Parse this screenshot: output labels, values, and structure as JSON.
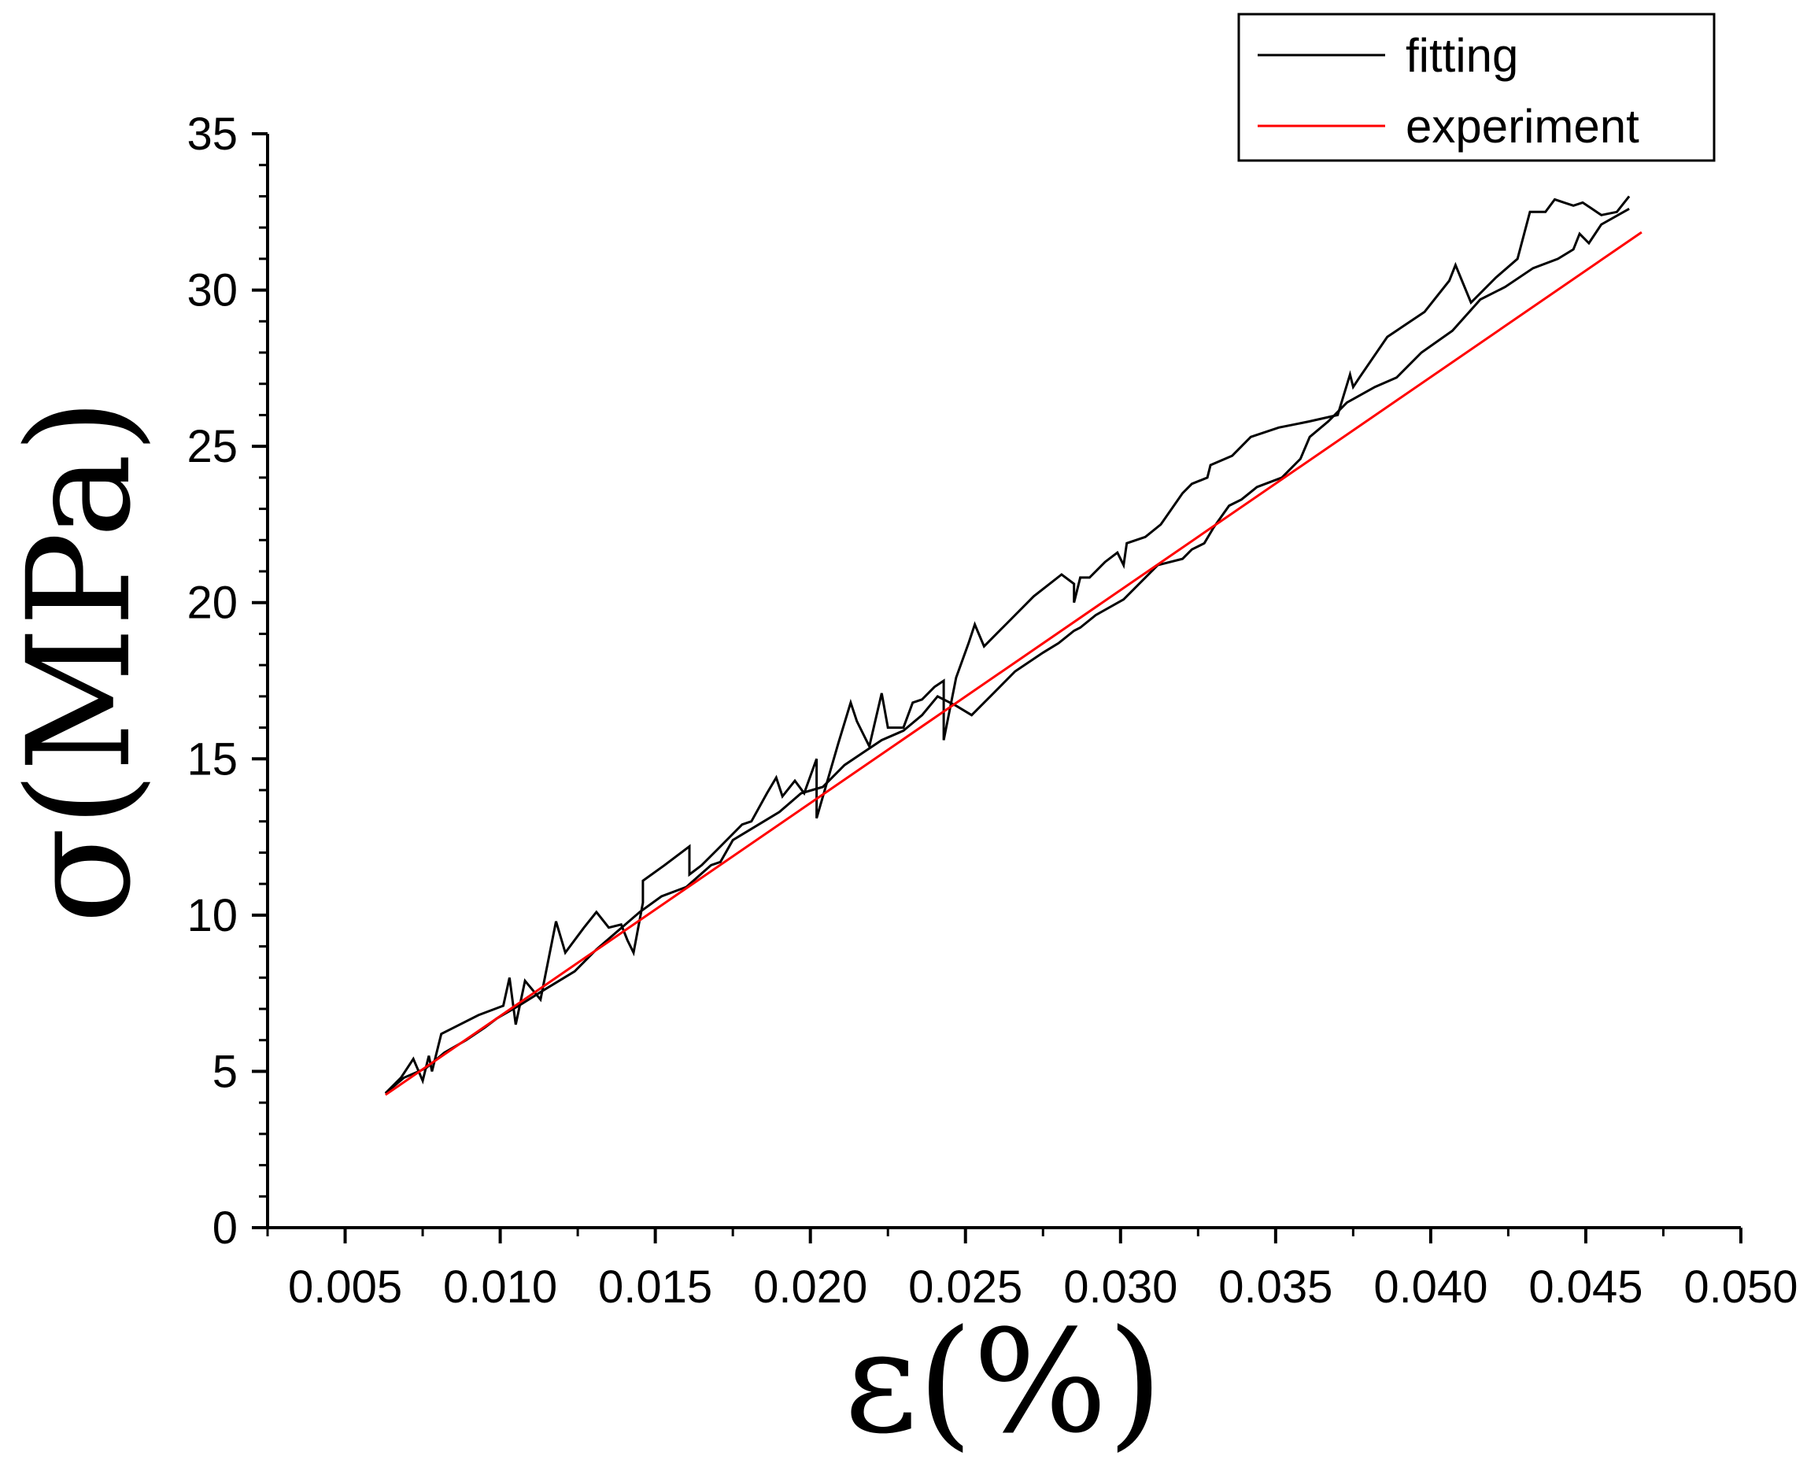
{
  "chart_data": {
    "type": "line",
    "xlabel": "ε(%)",
    "ylabel": "σ(MPa)",
    "xlim": [
      0.0025,
      0.05
    ],
    "ylim": [
      0,
      35
    ],
    "x_ticks": [
      "0.005",
      "0.010",
      "0.015",
      "0.020",
      "0.025",
      "0.030",
      "0.035",
      "0.040",
      "0.045",
      "0.050"
    ],
    "y_ticks": [
      "0",
      "5",
      "10",
      "15",
      "20",
      "25",
      "30",
      "35"
    ],
    "grid": false,
    "legend_position": "top-right",
    "colors": {
      "fitting": "#000000",
      "experiment": "#ff0000"
    },
    "series": [
      {
        "name": "fitting",
        "color": "#000000",
        "x": [
          0.0063,
          0.0068,
          0.0072,
          0.0075,
          0.0077,
          0.0078,
          0.0081,
          0.0085,
          0.0093,
          0.0101,
          0.0103,
          0.0105,
          0.0108,
          0.0113,
          0.0118,
          0.0121,
          0.0127,
          0.0131,
          0.0135,
          0.0139,
          0.0141,
          0.0143,
          0.0146,
          0.0146,
          0.0153,
          0.0161,
          0.0161,
          0.0165,
          0.017,
          0.0178,
          0.0181,
          0.0186,
          0.0189,
          0.0191,
          0.0195,
          0.0198,
          0.0202,
          0.0202,
          0.0209,
          0.0213,
          0.0215,
          0.0219,
          0.0223,
          0.0225,
          0.023,
          0.0233,
          0.0236,
          0.024,
          0.0243,
          0.0243,
          0.0247,
          0.0251,
          0.0253,
          0.0256,
          0.0263,
          0.0272,
          0.0281,
          0.0285,
          0.0285,
          0.0287,
          0.029,
          0.0295,
          0.0299,
          0.0301,
          0.0302,
          0.0308,
          0.0313,
          0.032,
          0.0323,
          0.0328,
          0.0329,
          0.0336,
          0.0342,
          0.0351,
          0.0361,
          0.037,
          0.0374,
          0.0375,
          0.0377,
          0.0386,
          0.0398,
          0.0406,
          0.0408,
          0.0413,
          0.0421,
          0.0428,
          0.0432,
          0.0437,
          0.044,
          0.0443,
          0.0446,
          0.0449,
          0.0452,
          0.0455,
          0.046,
          0.0464
        ],
        "y": [
          4.3,
          4.8,
          5.4,
          4.7,
          5.5,
          5.0,
          6.2,
          6.4,
          6.8,
          7.1,
          8.0,
          6.5,
          7.9,
          7.3,
          9.8,
          8.8,
          9.6,
          10.1,
          9.6,
          9.7,
          9.2,
          8.8,
          10.4,
          11.1,
          11.6,
          12.2,
          11.3,
          11.6,
          12.1,
          12.9,
          13.0,
          13.9,
          14.4,
          13.8,
          14.3,
          13.9,
          15.0,
          13.1,
          15.5,
          16.8,
          16.2,
          15.4,
          17.1,
          16.0,
          16.0,
          16.8,
          16.9,
          17.3,
          17.5,
          15.6,
          17.6,
          18.7,
          19.3,
          18.6,
          19.3,
          20.2,
          20.9,
          20.6,
          20.0,
          20.8,
          20.8,
          21.3,
          21.6,
          21.2,
          21.9,
          22.1,
          22.5,
          23.5,
          23.8,
          24.0,
          24.4,
          24.7,
          25.3,
          25.6,
          25.8,
          26.0,
          27.3,
          26.9,
          27.2,
          28.5,
          29.3,
          30.3,
          30.8,
          29.6,
          30.4,
          31.0,
          32.5,
          32.5,
          32.9,
          32.8,
          32.7,
          32.8,
          32.6,
          32.4,
          32.5,
          33.0
        ]
      },
      {
        "name": "fitting",
        "color": "#000000",
        "x": [
          0.0464,
          0.0455,
          0.0451,
          0.0448,
          0.0446,
          0.0441,
          0.0433,
          0.0424,
          0.0416,
          0.0407,
          0.0397,
          0.0389,
          0.0382,
          0.0373,
          0.0367,
          0.0361,
          0.0358,
          0.0352,
          0.0344,
          0.0339,
          0.0335,
          0.033,
          0.0327,
          0.0323,
          0.032,
          0.0312,
          0.0301,
          0.0292,
          0.0287,
          0.0285,
          0.028,
          0.0275,
          0.0266,
          0.0258,
          0.0252,
          0.0247,
          0.0241,
          0.0236,
          0.023,
          0.0223,
          0.0217,
          0.0211,
          0.0204,
          0.0197,
          0.019,
          0.0185,
          0.0175,
          0.0171,
          0.0168,
          0.016,
          0.0152,
          0.0145,
          0.0138,
          0.0131,
          0.0124,
          0.0114,
          0.0106,
          0.0099,
          0.0095,
          0.0089,
          0.0082,
          0.0076,
          0.0069,
          0.0063
        ],
        "y": [
          32.6,
          32.1,
          31.5,
          31.8,
          31.3,
          31.0,
          30.7,
          30.1,
          29.7,
          28.7,
          28.0,
          27.2,
          26.9,
          26.4,
          25.8,
          25.3,
          24.6,
          24.0,
          23.7,
          23.3,
          23.1,
          22.4,
          21.9,
          21.7,
          21.4,
          21.2,
          20.1,
          19.6,
          19.2,
          19.1,
          18.7,
          18.4,
          17.8,
          17.0,
          16.4,
          16.7,
          17.0,
          16.4,
          15.9,
          15.6,
          15.2,
          14.8,
          14.1,
          13.9,
          13.3,
          13.0,
          12.4,
          11.7,
          11.6,
          10.9,
          10.6,
          10.1,
          9.5,
          8.9,
          8.2,
          7.6,
          7.1,
          6.7,
          6.4,
          6.0,
          5.6,
          5.1,
          4.8,
          4.3
        ]
      },
      {
        "name": "experiment",
        "color": "#ff0000",
        "x": [
          0.0063,
          0.0468
        ],
        "y": [
          4.25,
          31.85
        ]
      }
    ]
  }
}
